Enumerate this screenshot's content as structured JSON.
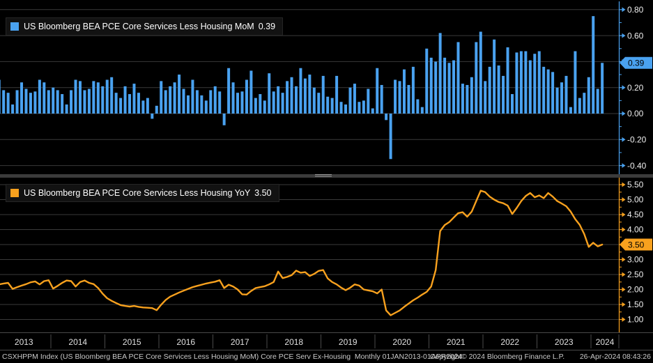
{
  "top_panel": {
    "legend": {
      "label": "US Bloomberg BEA PCE Core Services Less Housing MoM",
      "value": "0.39"
    },
    "last_value_tag": "0.39"
  },
  "bottom_panel": {
    "legend": {
      "label": "US Bloomberg BEA PCE Core Services Less Housing YoY",
      "value": "3.50"
    },
    "last_value_tag": "3.50"
  },
  "x_axis": {
    "years": [
      "2013",
      "2014",
      "2015",
      "2016",
      "2017",
      "2018",
      "2019",
      "2020",
      "2021",
      "2022",
      "2023",
      "2024"
    ]
  },
  "status_bar": {
    "left": "CSXHPPM Index (US Bloomberg BEA PCE Core Services Less Housing MoM) Core PCE Serv Ex-Housing  Monthly 01JAN2013-01APR2024",
    "copyright": "Copyright© 2024 Bloomberg Finance L.P.",
    "timestamp": "26-Apr-2024 08:43:26"
  },
  "colors": {
    "background": "#000000",
    "grid": "#3a3a3a",
    "mom_blue": "#4aa2f0",
    "yoy_orange": "#f8a11e",
    "axis_text": "#f0f0f0",
    "tag_text": "#000000",
    "year_text": "#e0e0e0",
    "frame": "#4a4a4a"
  },
  "chart_data": [
    {
      "type": "bar",
      "title": "US Bloomberg BEA PCE Core Services Less Housing MoM",
      "x_start": "2013-01",
      "frequency": "monthly",
      "x_range_label": "01JAN2013-01APR2024",
      "last_value": 0.39,
      "ylim": [
        -0.45,
        0.85
      ],
      "yticks": [
        0.8,
        0.6,
        0.4,
        0.2,
        0.0,
        -0.2,
        -0.4
      ],
      "grid": true,
      "legend_position": "top-left",
      "color": "#4aa2f0",
      "values": [
        0.26,
        0.18,
        0.16,
        0.07,
        0.18,
        0.24,
        0.19,
        0.16,
        0.17,
        0.26,
        0.24,
        0.18,
        0.2,
        0.18,
        0.15,
        0.07,
        0.18,
        0.26,
        0.25,
        0.18,
        0.19,
        0.25,
        0.24,
        0.21,
        0.26,
        0.28,
        0.16,
        0.12,
        0.21,
        0.15,
        0.23,
        0.16,
        0.1,
        0.12,
        -0.04,
        0.06,
        0.25,
        0.18,
        0.21,
        0.24,
        0.3,
        0.19,
        0.14,
        0.26,
        0.18,
        0.14,
        0.1,
        0.18,
        0.21,
        0.17,
        -0.09,
        0.35,
        0.24,
        0.16,
        0.17,
        0.26,
        0.33,
        0.12,
        0.15,
        0.1,
        0.31,
        0.17,
        0.21,
        0.16,
        0.25,
        0.28,
        0.21,
        0.35,
        0.27,
        0.3,
        0.2,
        0.16,
        0.29,
        0.13,
        0.12,
        0.29,
        0.09,
        0.07,
        0.2,
        0.23,
        0.09,
        0.1,
        0.19,
        0.04,
        0.35,
        0.22,
        -0.05,
        -0.35,
        0.26,
        0.25,
        0.34,
        0.22,
        0.36,
        0.11,
        0.05,
        0.5,
        0.43,
        0.4,
        0.62,
        0.43,
        0.39,
        0.41,
        0.55,
        0.23,
        0.22,
        0.28,
        0.55,
        0.63,
        0.25,
        0.36,
        0.57,
        0.37,
        0.29,
        0.51,
        0.15,
        0.47,
        0.48,
        0.48,
        0.41,
        0.46,
        0.48,
        0.36,
        0.34,
        0.32,
        0.2,
        0.24,
        0.29,
        0.05,
        0.48,
        0.12,
        0.16,
        0.28,
        0.75,
        0.19,
        0.39
      ]
    },
    {
      "type": "line",
      "title": "US Bloomberg BEA PCE Core Services Less Housing YoY",
      "x_start": "2013-01",
      "frequency": "monthly",
      "x_range_label": "01JAN2013-01APR2024",
      "last_value": 3.5,
      "ylim": [
        0.9,
        5.6
      ],
      "yticks": [
        5.5,
        5.0,
        4.5,
        4.0,
        3.5,
        3.0,
        2.5,
        2.0,
        1.5,
        1.0
      ],
      "grid": true,
      "legend_position": "top-left",
      "color": "#f8a11e",
      "values": [
        2.17,
        2.2,
        2.22,
        2.02,
        2.08,
        2.13,
        2.18,
        2.24,
        2.27,
        2.17,
        2.28,
        2.31,
        2.03,
        2.12,
        2.22,
        2.3,
        2.28,
        2.1,
        2.25,
        2.3,
        2.22,
        2.18,
        2.05,
        1.86,
        1.71,
        1.62,
        1.55,
        1.48,
        1.45,
        1.43,
        1.45,
        1.42,
        1.4,
        1.39,
        1.38,
        1.31,
        1.49,
        1.65,
        1.76,
        1.83,
        1.9,
        1.96,
        2.02,
        2.08,
        2.12,
        2.16,
        2.2,
        2.23,
        2.26,
        2.31,
        2.05,
        2.16,
        2.1,
        2.0,
        1.84,
        1.83,
        1.95,
        2.05,
        2.08,
        2.11,
        2.17,
        2.25,
        2.6,
        2.38,
        2.42,
        2.48,
        2.63,
        2.56,
        2.58,
        2.45,
        2.52,
        2.62,
        2.65,
        2.37,
        2.25,
        2.17,
        2.06,
        1.98,
        2.06,
        2.17,
        2.13,
        2.0,
        1.97,
        1.94,
        1.87,
        2.0,
        1.3,
        1.14,
        1.22,
        1.3,
        1.42,
        1.53,
        1.64,
        1.73,
        1.83,
        1.92,
        2.1,
        2.65,
        3.95,
        4.15,
        4.25,
        4.4,
        4.55,
        4.58,
        4.43,
        4.6,
        4.95,
        5.3,
        5.25,
        5.1,
        5.0,
        4.92,
        4.88,
        4.8,
        4.52,
        4.72,
        4.95,
        5.12,
        5.22,
        5.08,
        5.14,
        5.05,
        5.22,
        5.1,
        4.95,
        4.87,
        4.78,
        4.6,
        4.35,
        4.16,
        3.85,
        3.42,
        3.56,
        3.44,
        3.5
      ]
    }
  ]
}
